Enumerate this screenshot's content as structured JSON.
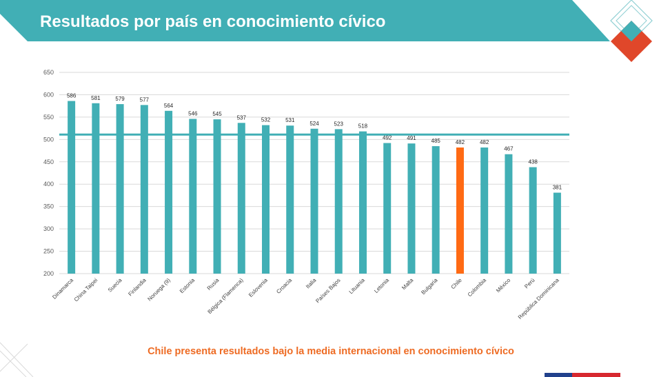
{
  "title": "Resultados por país en conocimiento cívico",
  "caption": "Chile presenta resultados bajo la media internacional en conocimiento cívico",
  "colors": {
    "header": "#41afb5",
    "bar_default": "#41afb5",
    "bar_highlight": "#ff6a13",
    "mean_line": "#41afb5",
    "caption": "#ee6b23",
    "logo_red": "#e0472a"
  },
  "chart_data": {
    "type": "bar",
    "categories": [
      "Dinamarca",
      "China Taipei",
      "Suecia",
      "Finlandia",
      "Noruega (9)",
      "Estonia",
      "Rusia",
      "Bélgica (Flamenca)",
      "Eslovenia",
      "Croacia",
      "Italia",
      "Países Bajos",
      "Lituania",
      "Letonia",
      "Malta",
      "Bulgaria",
      "Chile",
      "Colombia",
      "México",
      "Perú",
      "República Dominicana"
    ],
    "values": [
      586,
      581,
      579,
      577,
      564,
      546,
      545,
      537,
      532,
      531,
      524,
      523,
      518,
      492,
      491,
      485,
      482,
      482,
      467,
      438,
      381
    ],
    "highlight": "Chile",
    "mean_line_value": 511,
    "ylim": [
      200,
      650
    ],
    "yticks": [
      200,
      250,
      300,
      350,
      400,
      450,
      500,
      550,
      600,
      650
    ],
    "grid": true,
    "legend": "none"
  }
}
